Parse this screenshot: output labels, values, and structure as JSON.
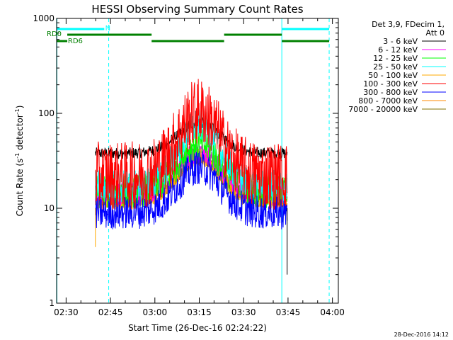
{
  "chart_data": {
    "type": "line",
    "title": "HESSI Observing Summary Count Rates",
    "xlabel": "Start Time (26-Dec-16 02:24:22)",
    "ylabel_main": "Count Rate (s",
    "ylabel_sup1": "-1",
    "ylabel_mid": " detector",
    "ylabel_sup2": "-1",
    "ylabel_end": ")",
    "yscale": "log",
    "ylim": [
      1,
      1000
    ],
    "xlim_minutes": [
      2.4,
      97.6
    ],
    "x_start_time": "02:24:22",
    "xticks": [
      {
        "label": "02:30",
        "m": 5.6
      },
      {
        "label": "02:45",
        "m": 20.6
      },
      {
        "label": "03:00",
        "m": 35.6
      },
      {
        "label": "03:15",
        "m": 50.6
      },
      {
        "label": "03:30",
        "m": 65.6
      },
      {
        "label": "03:45",
        "m": 80.6
      },
      {
        "label": "04:00",
        "m": 95.6
      }
    ],
    "yticks": [
      {
        "label": "1",
        "v": 1
      },
      {
        "label": "10",
        "v": 10
      },
      {
        "label": "100",
        "v": 100
      },
      {
        "label": "1000",
        "v": 1000
      }
    ],
    "legend_header": [
      "Det 3,9, FDecim 1,",
      "Att 0"
    ],
    "legend_position": "right",
    "series": [
      {
        "name": "3 - 6 keV",
        "color": "#000000",
        "base": 38,
        "peak": 80,
        "noise": 0.05
      },
      {
        "name": "6 - 12 keV",
        "color": "#ff00ff",
        "base": 14,
        "peak": 38,
        "noise": 0.1
      },
      {
        "name": "12 - 25 keV",
        "color": "#00ff00",
        "base": 15,
        "peak": 48,
        "noise": 0.15
      },
      {
        "name": "25 - 50 keV",
        "color": "#00ffff",
        "base": 17,
        "peak": 75,
        "noise": 0.15
      },
      {
        "name": "50 - 100 keV",
        "color": "#ffaa00",
        "base": 12,
        "peak": 36,
        "noise": 0.08
      },
      {
        "name": "100 - 300 keV",
        "color": "#ff0000",
        "base": 22,
        "peak": 105,
        "noise": 0.3
      },
      {
        "name": "300 - 800 keV",
        "color": "#0000ff",
        "base": 9,
        "peak": 27,
        "noise": 0.15
      },
      {
        "name": "800 - 7000 keV",
        "color": "#ff8800",
        "base": 12,
        "peak": 33,
        "noise": 0.06
      },
      {
        "name": "7000 - 20000 keV",
        "color": "#807000",
        "base": 13,
        "peak": 35,
        "noise": 0.08
      }
    ],
    "flags": {
      "N": {
        "label": "N",
        "color": "#00ffff",
        "segments": [
          [
            2.4,
            18.5
          ],
          [
            78.5,
            94.5
          ]
        ]
      },
      "RD0": {
        "label": "RD0",
        "color": "#008000",
        "segments": [
          [
            6.0,
            34.5
          ],
          [
            59.0,
            78.5
          ]
        ]
      },
      "RD6": {
        "label": "RD6",
        "color": "#008000",
        "segments": [
          [
            2.4,
            6.0
          ],
          [
            34.5,
            59.0
          ],
          [
            78.5,
            94.5
          ]
        ]
      }
    },
    "vlines_solid": [
      2.5,
      78.5
    ],
    "vlines_dashed": [
      20.0,
      94.5
    ],
    "data_range_minutes": [
      15.5,
      80.3
    ],
    "peak_minute": 50.5,
    "footer_date": "28-Dec-2016 14:12"
  }
}
